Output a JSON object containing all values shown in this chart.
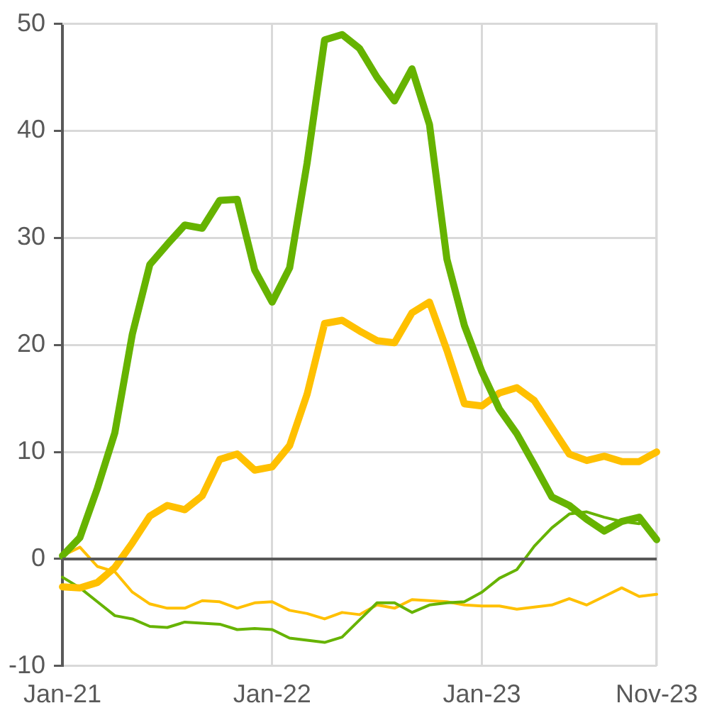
{
  "chart_data": {
    "type": "line",
    "categories": [
      "Jan-21",
      null,
      null,
      null,
      null,
      null,
      null,
      null,
      null,
      null,
      null,
      null,
      "Jan-22",
      null,
      null,
      null,
      null,
      null,
      null,
      null,
      null,
      null,
      null,
      null,
      "Jan-23",
      null,
      null,
      null,
      null,
      null,
      null,
      null,
      null,
      null,
      "Nov-23"
    ],
    "series": [
      {
        "color": "#66b300",
        "values": [
          0.3,
          2,
          6.6,
          11.8,
          21,
          27.5,
          29.4,
          31.2,
          30.9,
          33.5,
          33.6,
          27,
          24,
          27.2,
          37,
          48.5,
          49,
          47.7,
          45,
          42.8,
          45.8,
          40.6,
          28,
          21.8,
          17.5,
          14,
          11.7,
          8.8,
          5.8,
          5,
          3.7,
          2.6,
          3.5,
          3.9,
          1.8
        ]
      },
      {
        "color": "#ffc000",
        "values": [
          -2.6,
          -2.7,
          -2.2,
          -0.8,
          1.5,
          4,
          5,
          4.6,
          5.9,
          9.3,
          9.8,
          8.3,
          8.6,
          10.6,
          15.4,
          22,
          22.3,
          21.3,
          20.4,
          20.2,
          23,
          24,
          19.5,
          14.5,
          14.3,
          15.5,
          16,
          14.8,
          12.3,
          9.8,
          9.2,
          9.6,
          9.1,
          9.1,
          10
        ]
      },
      {
        "color": "#66b300",
        "values": [
          -1.7,
          -2.7,
          -4,
          -5.3,
          -5.6,
          -6.3,
          -6.4,
          -5.9,
          -6,
          -6.1,
          -6.6,
          -6.5,
          -6.6,
          -7.4,
          -7.6,
          -7.8,
          -7.3,
          -5.7,
          -4.1,
          -4.1,
          -5,
          -4.3,
          -4.1,
          -4,
          -3.1,
          -1.8,
          -1,
          1.2,
          2.9,
          4.2,
          4.4,
          3.9,
          3.5,
          3.3,
          null
        ]
      },
      {
        "color": "#ffc000",
        "values": [
          0.3,
          1.1,
          -0.7,
          -1.2,
          -3.1,
          -4.2,
          -4.6,
          -4.6,
          -3.9,
          -4,
          -4.6,
          -4.1,
          -4,
          -4.8,
          -5.1,
          -5.6,
          -5,
          -5.2,
          -4.3,
          -4.6,
          -3.8,
          -3.9,
          -4,
          -4.3,
          -4.4,
          -4.4,
          -4.7,
          -4.5,
          -4.3,
          -3.7,
          -4.3,
          -3.5,
          -2.7,
          -3.5,
          -3.3
        ]
      }
    ],
    "ylim": [
      -10,
      50
    ],
    "yticks": [
      -10,
      0,
      10,
      20,
      30,
      40,
      50
    ],
    "grid": true,
    "legend": false,
    "marker": "none",
    "line_style": "solid",
    "ref_lines": [
      {
        "axis": "y",
        "value": 0,
        "color": "#595959"
      }
    ]
  }
}
